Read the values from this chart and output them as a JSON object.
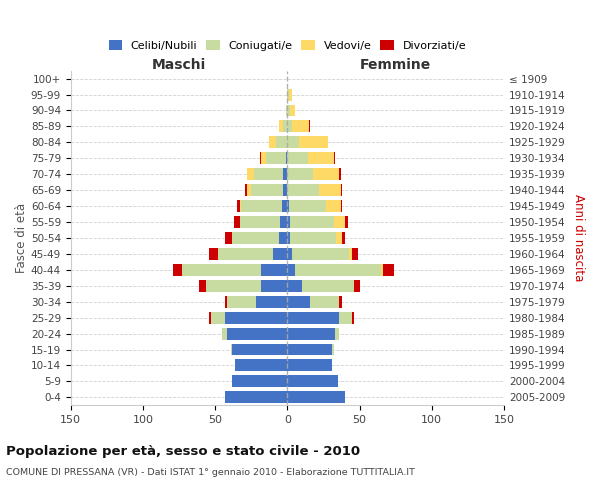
{
  "age_groups": [
    "0-4",
    "5-9",
    "10-14",
    "15-19",
    "20-24",
    "25-29",
    "30-34",
    "35-39",
    "40-44",
    "45-49",
    "50-54",
    "55-59",
    "60-64",
    "65-69",
    "70-74",
    "75-79",
    "80-84",
    "85-89",
    "90-94",
    "95-99",
    "100+"
  ],
  "birth_years": [
    "2005-2009",
    "2000-2004",
    "1995-1999",
    "1990-1994",
    "1985-1989",
    "1980-1984",
    "1975-1979",
    "1970-1974",
    "1965-1969",
    "1960-1964",
    "1955-1959",
    "1950-1954",
    "1945-1949",
    "1940-1944",
    "1935-1939",
    "1930-1934",
    "1925-1929",
    "1920-1924",
    "1915-1919",
    "1910-1914",
    "≤ 1909"
  ],
  "maschi": {
    "celibi": [
      43,
      38,
      36,
      38,
      42,
      43,
      22,
      18,
      18,
      10,
      6,
      5,
      4,
      3,
      3,
      1,
      0,
      0,
      0,
      0,
      0
    ],
    "coniugati": [
      0,
      0,
      0,
      1,
      3,
      10,
      20,
      38,
      55,
      38,
      32,
      28,
      28,
      22,
      20,
      14,
      8,
      3,
      1,
      0,
      0
    ],
    "vedovi": [
      0,
      0,
      0,
      0,
      0,
      0,
      0,
      0,
      0,
      0,
      0,
      0,
      1,
      3,
      5,
      3,
      5,
      3,
      0,
      0,
      0
    ],
    "divorziati": [
      0,
      0,
      0,
      0,
      0,
      1,
      1,
      5,
      6,
      6,
      5,
      4,
      2,
      1,
      0,
      1,
      0,
      0,
      0,
      0,
      0
    ]
  },
  "femmine": {
    "nubili": [
      40,
      35,
      31,
      31,
      33,
      36,
      16,
      10,
      5,
      3,
      2,
      2,
      1,
      0,
      0,
      0,
      0,
      0,
      0,
      0,
      0
    ],
    "coniugate": [
      0,
      0,
      0,
      1,
      3,
      9,
      20,
      36,
      60,
      40,
      32,
      30,
      26,
      22,
      18,
      14,
      8,
      3,
      2,
      1,
      0
    ],
    "vedove": [
      0,
      0,
      0,
      0,
      0,
      0,
      0,
      0,
      1,
      2,
      4,
      8,
      10,
      15,
      18,
      18,
      20,
      12,
      3,
      2,
      0
    ],
    "divorziate": [
      0,
      0,
      0,
      0,
      0,
      1,
      2,
      4,
      8,
      4,
      2,
      2,
      1,
      1,
      1,
      1,
      0,
      1,
      0,
      0,
      0
    ]
  },
  "colors": {
    "celibi": "#4472C4",
    "coniugati": "#c8dba0",
    "vedovi": "#FFD966",
    "divorziati": "#CC0000"
  },
  "xlim": 150,
  "title": "Popolazione per età, sesso e stato civile - 2010",
  "subtitle": "COMUNE DI PRESSANA (VR) - Dati ISTAT 1° gennaio 2010 - Elaborazione TUTTITALIA.IT",
  "maschi_label": "Maschi",
  "femmine_label": "Femmine",
  "ylabel_left": "Fasce di età",
  "ylabel_right": "Anni di nascita",
  "legend_labels": [
    "Celibi/Nubili",
    "Coniugati/e",
    "Vedovi/e",
    "Divorziati/e"
  ]
}
